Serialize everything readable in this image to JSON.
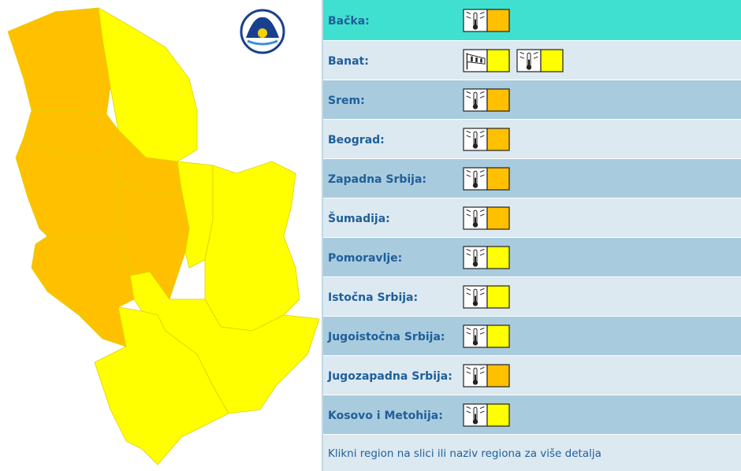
{
  "regions": [
    {
      "name": "Bačka:",
      "warnings": [
        {
          "type": "temperature",
          "color": "#ffc000"
        }
      ]
    },
    {
      "name": "Banat:",
      "warnings": [
        {
          "type": "wind",
          "color": "#ffff00"
        },
        {
          "type": "temperature",
          "color": "#ffff00"
        }
      ]
    },
    {
      "name": "Srem:",
      "warnings": [
        {
          "type": "temperature",
          "color": "#ffc000"
        }
      ]
    },
    {
      "name": "Beograd:",
      "warnings": [
        {
          "type": "temperature",
          "color": "#ffc000"
        }
      ]
    },
    {
      "name": "Zapadna Srbija:",
      "warnings": [
        {
          "type": "temperature",
          "color": "#ffc000"
        }
      ]
    },
    {
      "name": "Šumadija:",
      "warnings": [
        {
          "type": "temperature",
          "color": "#ffc000"
        }
      ]
    },
    {
      "name": "Pomoravlje:",
      "warnings": [
        {
          "type": "temperature",
          "color": "#ffff00"
        }
      ]
    },
    {
      "name": "Istočna Srbija:",
      "warnings": [
        {
          "type": "temperature",
          "color": "#ffff00"
        }
      ]
    },
    {
      "name": "Jugoistočna Srbija:",
      "warnings": [
        {
          "type": "temperature",
          "color": "#ffff00"
        }
      ]
    },
    {
      "name": "Jugozapadna Srbija:",
      "warnings": [
        {
          "type": "temperature",
          "color": "#ffc000"
        }
      ]
    },
    {
      "name": "Kosovo i Metohija:",
      "warnings": [
        {
          "type": "temperature",
          "color": "#ffff00"
        }
      ]
    }
  ],
  "footer": "Klikni region na slici ili naziv regiona za više detalja"
}
